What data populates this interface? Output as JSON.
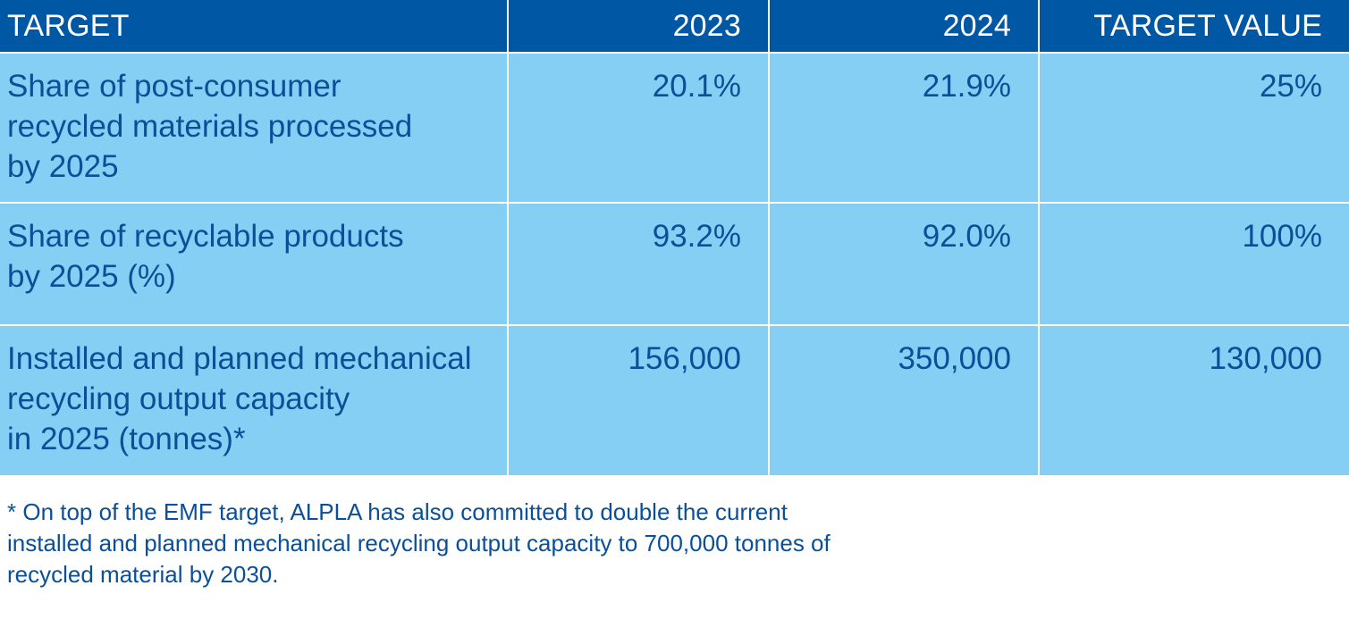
{
  "table": {
    "headers": [
      "TARGET",
      "2023",
      "2024",
      "TARGET VALUE"
    ],
    "rows": [
      {
        "target_lines": [
          "Share of post-consumer",
          "recycled materials processed",
          "by 2025"
        ],
        "y2023": "20.1%",
        "y2024": "21.9%",
        "target_value": "25%"
      },
      {
        "target_lines": [
          "Share of recyclable products",
          "by 2025 (%)"
        ],
        "y2023": "93.2%",
        "y2024": "92.0%",
        "target_value": "100%"
      },
      {
        "target_lines": [
          "Installed and planned mechanical",
          "recycling output capacity",
          "in 2025 (tonnes)*"
        ],
        "y2023": "156,000",
        "y2024": "350,000",
        "target_value": "130,000"
      }
    ]
  },
  "footnote": {
    "lines": [
      "* On top of the EMF target, ALPLA has also committed to double the current",
      "installed and planned mechanical recycling output capacity to 700,000 tonnes of",
      "recycled material by 2030."
    ]
  },
  "colors": {
    "header_bg": "#0057a4",
    "body_bg": "#86cff4",
    "text": "#0a4f98"
  }
}
